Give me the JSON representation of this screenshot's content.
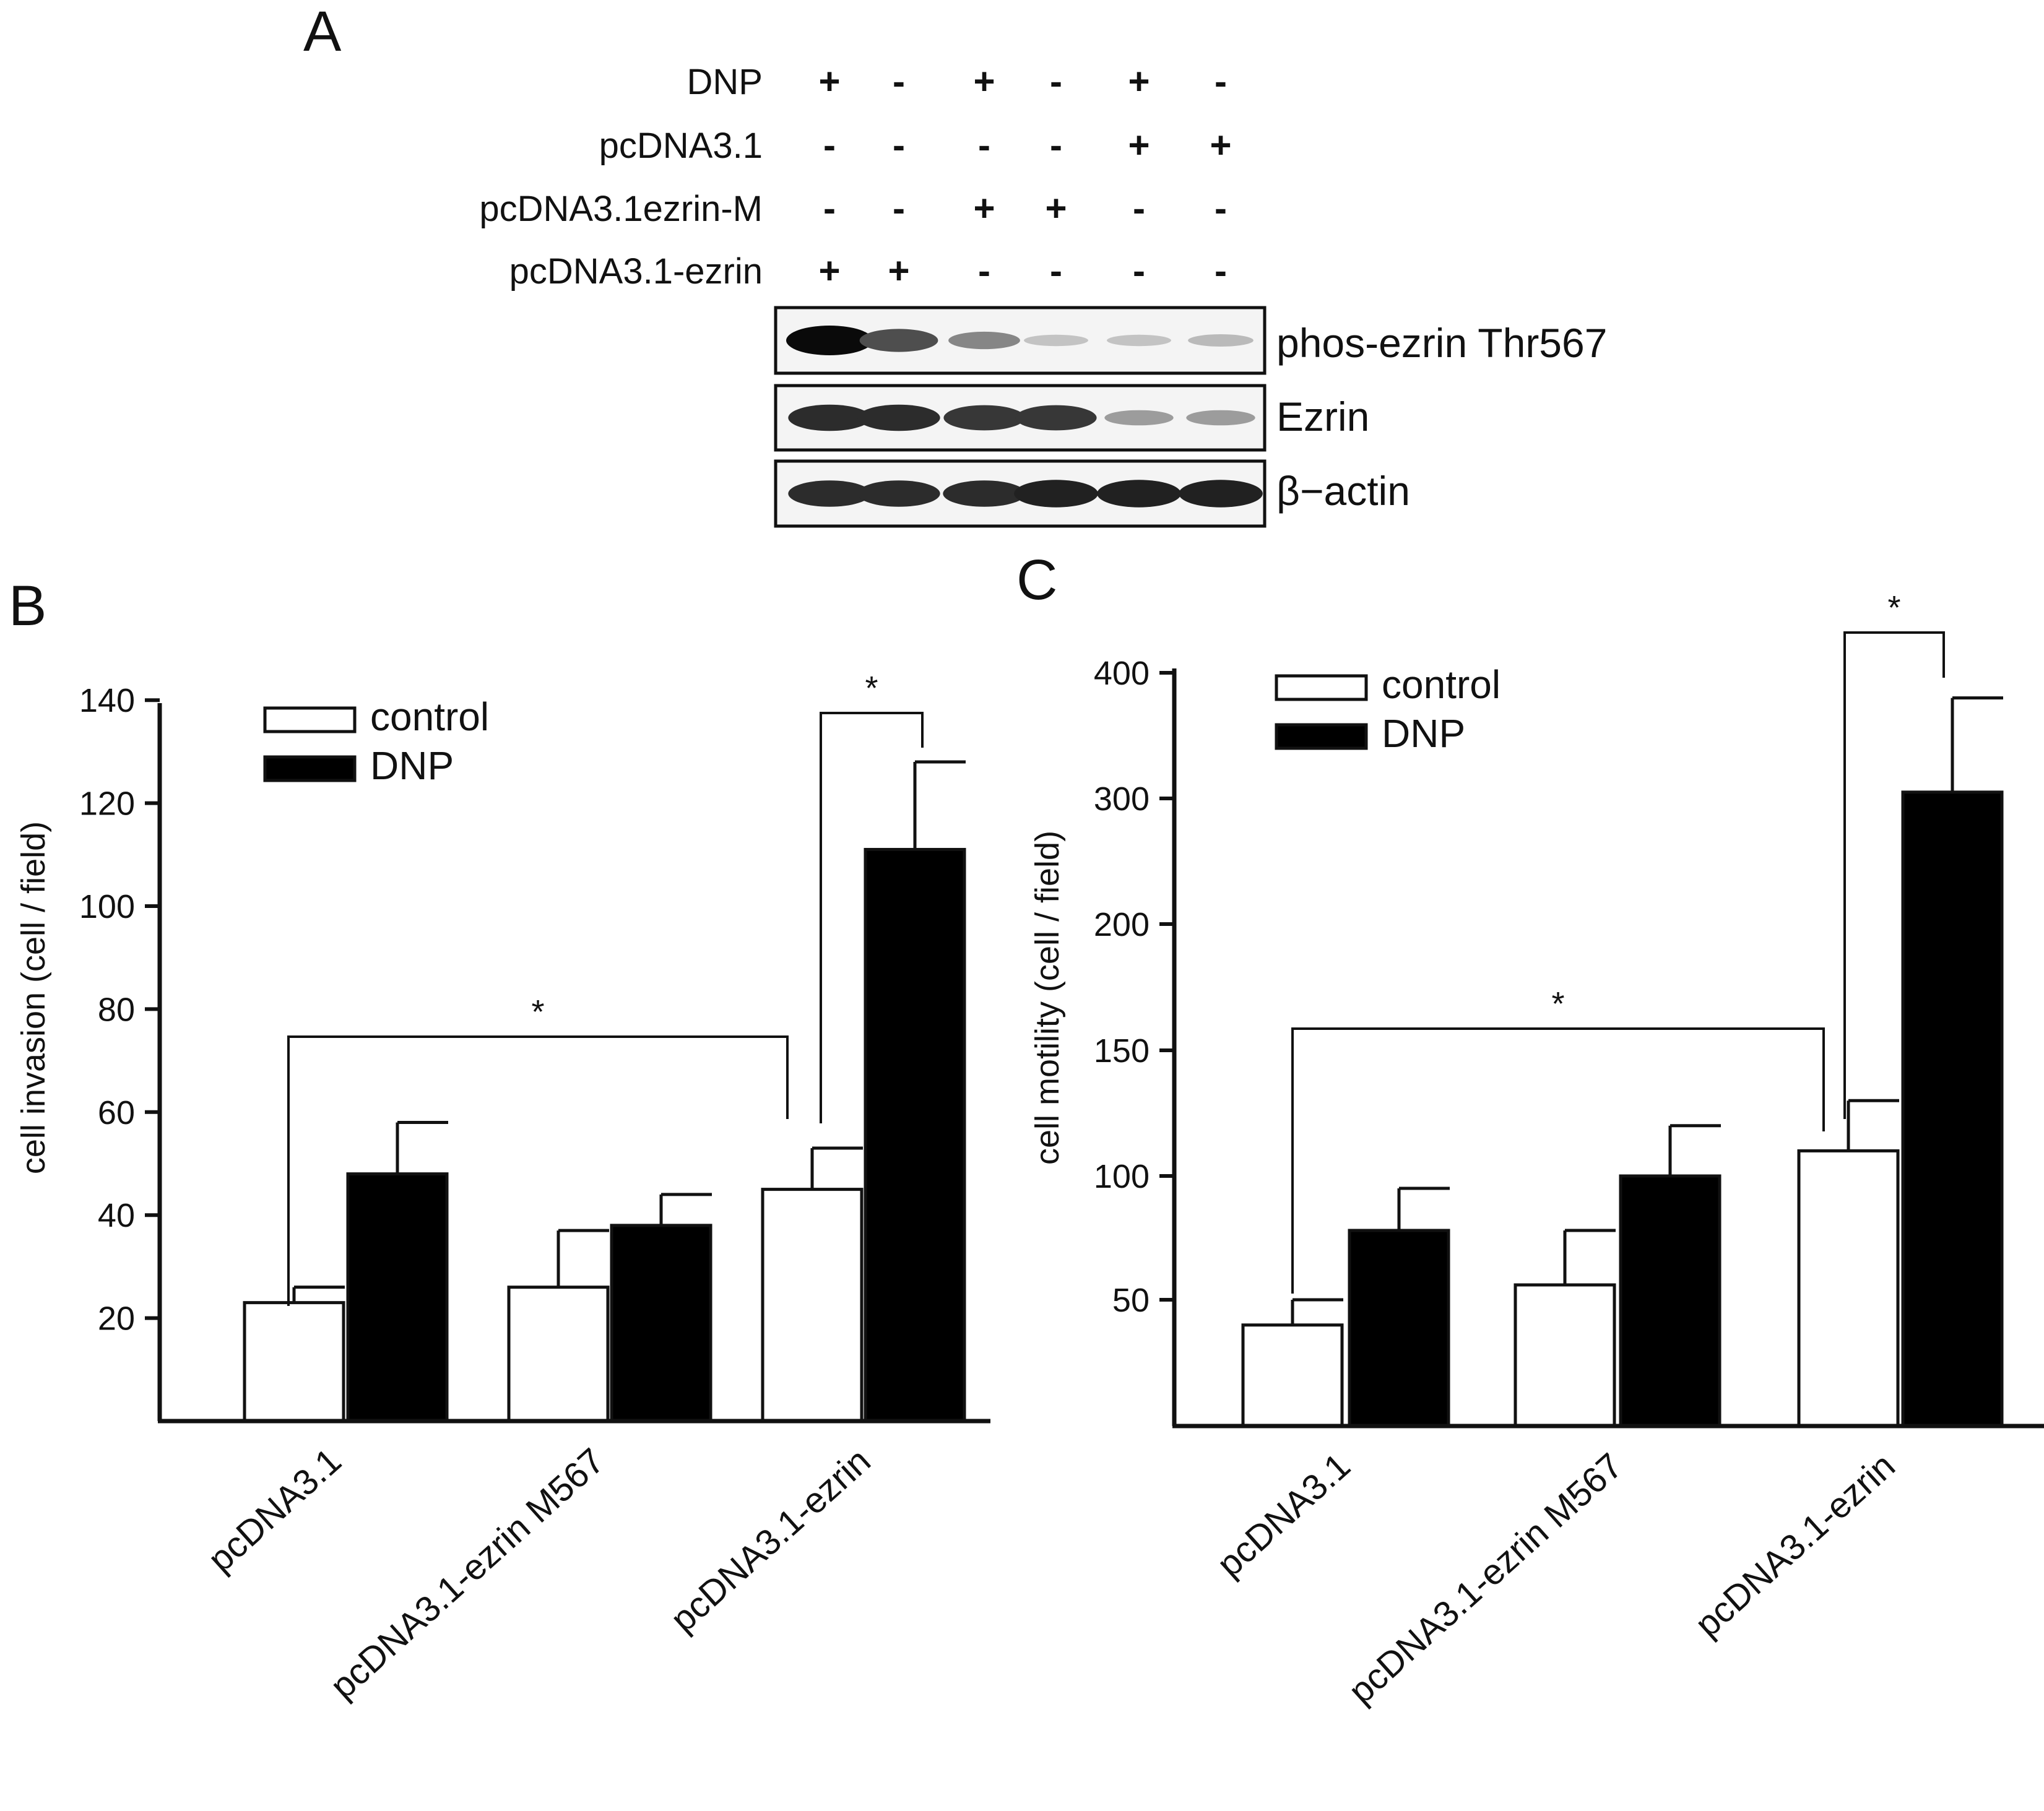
{
  "panels": {
    "a": {
      "letter": "A",
      "conditions": [
        {
          "label": "DNP",
          "signs": [
            "+",
            "-",
            "+",
            "-",
            "+",
            "-"
          ]
        },
        {
          "label": "pcDNA3.1",
          "signs": [
            "-",
            "-",
            "-",
            "-",
            "+",
            "+"
          ]
        },
        {
          "label": "pcDNA3.1ezrin-M",
          "signs": [
            "-",
            "-",
            "+",
            "+",
            "-",
            "-"
          ]
        },
        {
          "label": "pcDNA3.1-ezrin",
          "signs": [
            "+",
            "+",
            "-",
            "-",
            "-",
            "-"
          ]
        }
      ],
      "blots": [
        {
          "label": "phos-ezrin Thr567",
          "intensity": [
            1.0,
            0.7,
            0.45,
            0.18,
            0.18,
            0.22
          ]
        },
        {
          "label": "Ezrin",
          "intensity": [
            0.85,
            0.85,
            0.8,
            0.8,
            0.35,
            0.35
          ]
        },
        {
          "label": "β−actin",
          "intensity": [
            0.85,
            0.85,
            0.85,
            0.9,
            0.9,
            0.9
          ]
        }
      ]
    },
    "b": {
      "letter": "B"
    },
    "c": {
      "letter": "C"
    }
  },
  "colors": {
    "control": "#ffffff",
    "dnp": "#000000",
    "ink": "#111111"
  },
  "chart_data": [
    {
      "type": "bar",
      "panel": "B",
      "categories": [
        "pcDNA3.1",
        "pcDNA3.1-ezrin M567",
        "pcDNA3.1-ezrin"
      ],
      "series": [
        {
          "name": "control",
          "values": [
            23,
            26,
            45
          ],
          "errors": [
            3,
            11,
            8
          ]
        },
        {
          "name": "DNP",
          "values": [
            48,
            38,
            111
          ],
          "errors": [
            10,
            6,
            17
          ]
        }
      ],
      "ylabel": "cell invasion (cell / field)",
      "ylim": [
        0,
        140
      ],
      "yticks": [
        20,
        40,
        60,
        80,
        100,
        120,
        140
      ],
      "legend": "top-left",
      "annotations": [
        "*",
        "*"
      ]
    },
    {
      "type": "bar",
      "panel": "C",
      "categories": [
        "pcDNA3.1",
        "pcDNA3.1-ezrin M567",
        "pcDNA3.1-ezrin"
      ],
      "series": [
        {
          "name": "control",
          "values": [
            40,
            56,
            110
          ],
          "errors": [
            10,
            22,
            20
          ]
        },
        {
          "name": "DNP",
          "values": [
            78,
            100,
            305
          ],
          "errors": [
            17,
            20,
            75
          ]
        }
      ],
      "ylabel": "cell motility (cell / field)",
      "ytick_labels": [
        "50",
        "100",
        "150",
        "200",
        "300",
        "400"
      ],
      "legend": "top-left",
      "annotations": [
        "*",
        "*"
      ]
    }
  ]
}
